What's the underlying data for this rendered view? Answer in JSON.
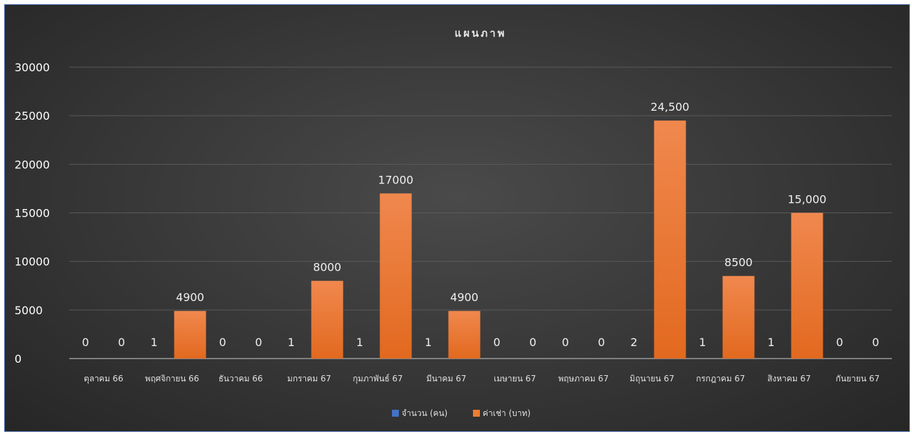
{
  "chart_data": {
    "type": "bar",
    "title": "แผนภาพ",
    "categories": [
      "ตุลาคม 66",
      "พฤศจิกายน 66",
      "ธันวาคม 66",
      "มกราคม 67",
      "กุมภาพันธ์ 67",
      "มีนาคม 67",
      "เมษายน 67",
      "พฤษภาคม 67",
      "มิถุนายน 67",
      "กรกฎาคม 67",
      "สิงหาคม 67",
      "กันยายน 67"
    ],
    "series": [
      {
        "name": "จำนวน (คน)",
        "color": "#4472c4",
        "values": [
          0,
          1,
          0,
          1,
          1,
          1,
          0,
          0,
          2,
          1,
          1,
          0
        ],
        "labels": [
          "0",
          "1",
          "0",
          "1",
          "1",
          "1",
          "0",
          "0",
          "2",
          "1",
          "1",
          "0"
        ]
      },
      {
        "name": "ค่าเช่า (บาท)",
        "color": "#ed7d31",
        "values": [
          0,
          4900,
          0,
          8000,
          17000,
          4900,
          0,
          0,
          24500,
          8500,
          15000,
          0
        ],
        "labels": [
          "0",
          "4900",
          "0",
          "8000",
          "17000",
          "4900",
          "0",
          "0",
          "24,500",
          "8500",
          "15,000",
          "0"
        ]
      }
    ],
    "ylim": [
      0,
      30000
    ],
    "yticks": [
      "0",
      "5000",
      "10000",
      "15000",
      "20000",
      "25000",
      "30000"
    ],
    "grid": true,
    "legend_position": "bottom"
  }
}
